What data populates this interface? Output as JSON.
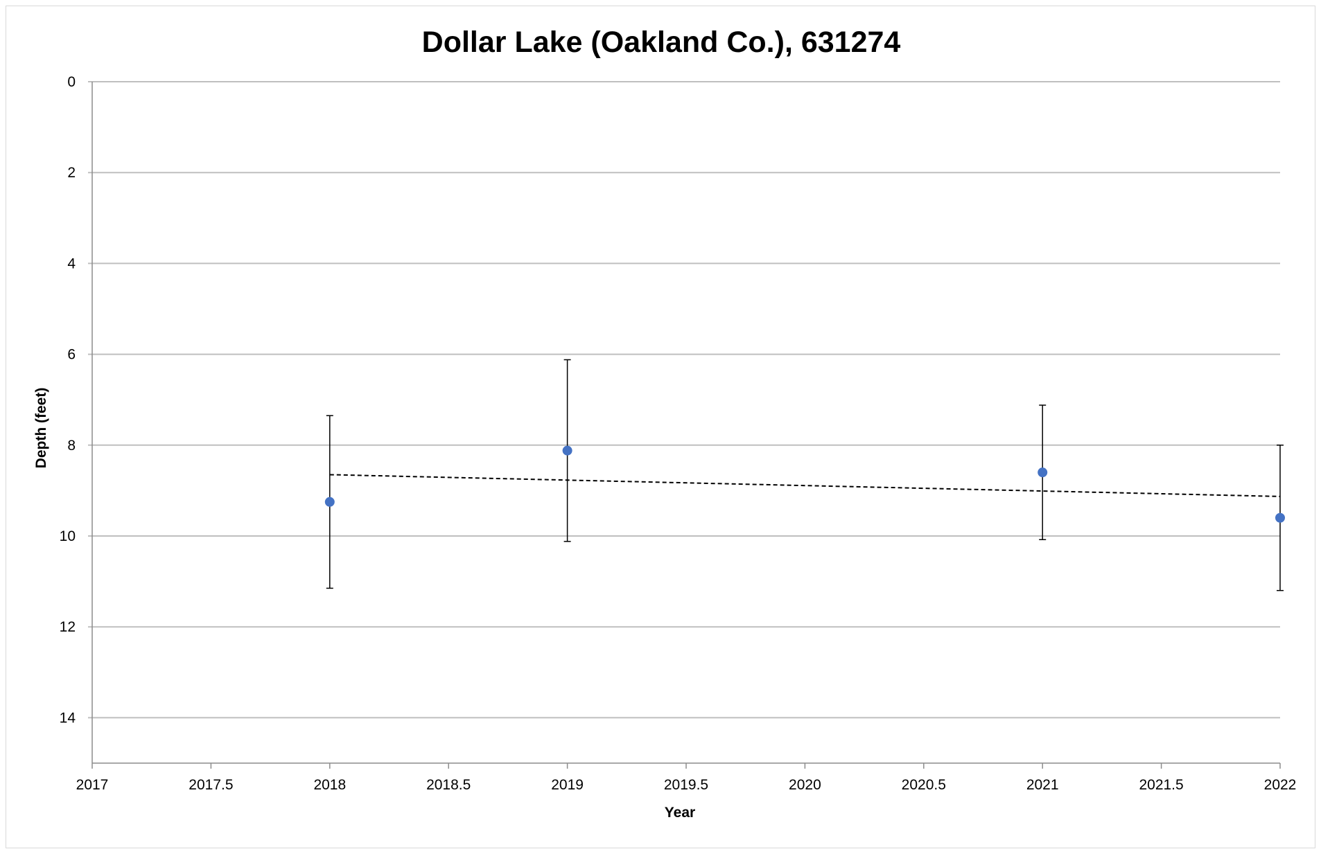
{
  "chart_data": {
    "type": "scatter",
    "title": "Dollar Lake (Oakland Co.), 631274",
    "xlabel": "Year",
    "ylabel": "Depth (feet)",
    "xlim": [
      2017,
      2022
    ],
    "ylim": [
      0,
      15
    ],
    "y_axis_reversed": true,
    "x_ticks": [
      "2017",
      "2017.5",
      "2018",
      "2018.5",
      "2019",
      "2019.5",
      "2020",
      "2020.5",
      "2021",
      "2021.5",
      "2022"
    ],
    "y_ticks": [
      "0",
      "2",
      "4",
      "6",
      "8",
      "10",
      "12",
      "14"
    ],
    "grid": "horizontal",
    "legend": "none",
    "series": [
      {
        "points": [
          {
            "x": 2018,
            "y": 9.25,
            "err_low": 7.35,
            "err_high": 11.15
          },
          {
            "x": 2019,
            "y": 8.12,
            "err_low": 6.12,
            "err_high": 10.12
          },
          {
            "x": 2021,
            "y": 8.6,
            "err_low": 7.12,
            "err_high": 10.08
          },
          {
            "x": 2022,
            "y": 9.6,
            "err_low": 8.0,
            "err_high": 11.2
          }
        ],
        "color": "#4472C4"
      }
    ],
    "trendline": {
      "style": "dashed",
      "color": "#000000",
      "x_start": 2018,
      "y_start": 8.65,
      "x_end": 2022,
      "y_end": 9.13
    }
  }
}
